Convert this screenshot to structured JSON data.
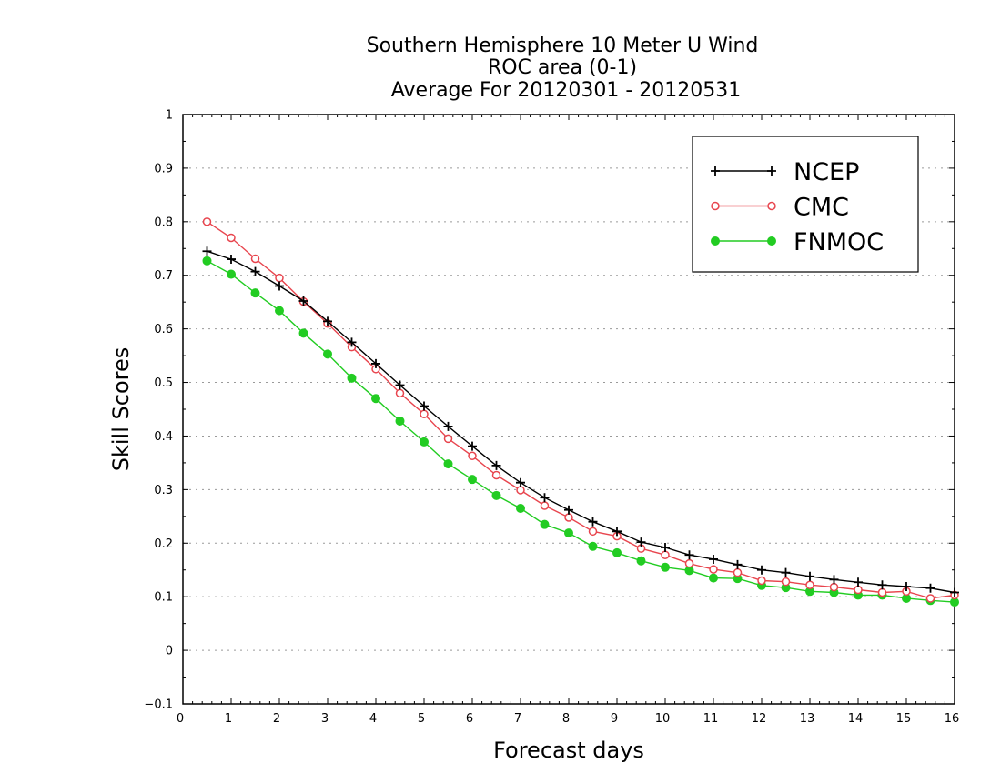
{
  "chart_data": {
    "type": "line",
    "title_lines": [
      "Southern Hemisphere 10 Meter U Wind",
      "ROC area (0-1)",
      "Average For 20120301 - 20120531"
    ],
    "xlabel": "Forecast days",
    "ylabel": "Skill Scores",
    "xlim": [
      0,
      16
    ],
    "ylim": [
      -0.1,
      1
    ],
    "xticks": [
      "0",
      "1",
      "2",
      "3",
      "4",
      "5",
      "6",
      "7",
      "8",
      "9",
      "10",
      "11",
      "12",
      "13",
      "14",
      "15",
      "16"
    ],
    "yticks": [
      "−0.1",
      "0",
      "0.1",
      "0.2",
      "0.3",
      "0.4",
      "0.5",
      "0.6",
      "0.7",
      "0.8",
      "0.9",
      "1"
    ],
    "grid": "horizontal dotted",
    "legend_position": "top-right",
    "x": [
      0.5,
      1,
      1.5,
      2,
      2.5,
      3,
      3.5,
      4,
      4.5,
      5,
      5.5,
      6,
      6.5,
      7,
      7.5,
      8,
      8.5,
      9,
      9.5,
      10,
      10.5,
      11,
      11.5,
      12,
      12.5,
      13,
      13.5,
      14,
      14.5,
      15,
      15.5,
      16
    ],
    "series": [
      {
        "name": "NCEP",
        "color": "#000000",
        "marker": "plus",
        "values": [
          0.745,
          0.73,
          0.707,
          0.68,
          0.652,
          0.614,
          0.575,
          0.535,
          0.495,
          0.456,
          0.418,
          0.381,
          0.345,
          0.313,
          0.285,
          0.262,
          0.24,
          0.222,
          0.202,
          0.192,
          0.178,
          0.17,
          0.16,
          0.15,
          0.145,
          0.138,
          0.132,
          0.127,
          0.122,
          0.119,
          0.116,
          0.108
        ]
      },
      {
        "name": "CMC",
        "color": "#e8454e",
        "marker": "open-circle",
        "values": [
          0.8,
          0.77,
          0.731,
          0.695,
          0.651,
          0.61,
          0.566,
          0.525,
          0.48,
          0.441,
          0.395,
          0.363,
          0.327,
          0.299,
          0.27,
          0.248,
          0.222,
          0.213,
          0.19,
          0.178,
          0.162,
          0.151,
          0.145,
          0.13,
          0.128,
          0.122,
          0.118,
          0.113,
          0.108,
          0.11,
          0.097,
          0.103
        ]
      },
      {
        "name": "FNMOC",
        "color": "#22cc22",
        "marker": "filled-circle",
        "values": [
          0.727,
          0.702,
          0.667,
          0.634,
          0.592,
          0.553,
          0.508,
          0.47,
          0.428,
          0.389,
          0.348,
          0.319,
          0.289,
          0.265,
          0.235,
          0.219,
          0.194,
          0.182,
          0.167,
          0.155,
          0.149,
          0.135,
          0.134,
          0.121,
          0.117,
          0.11,
          0.108,
          0.103,
          0.103,
          0.097,
          0.093,
          0.09
        ]
      }
    ]
  }
}
